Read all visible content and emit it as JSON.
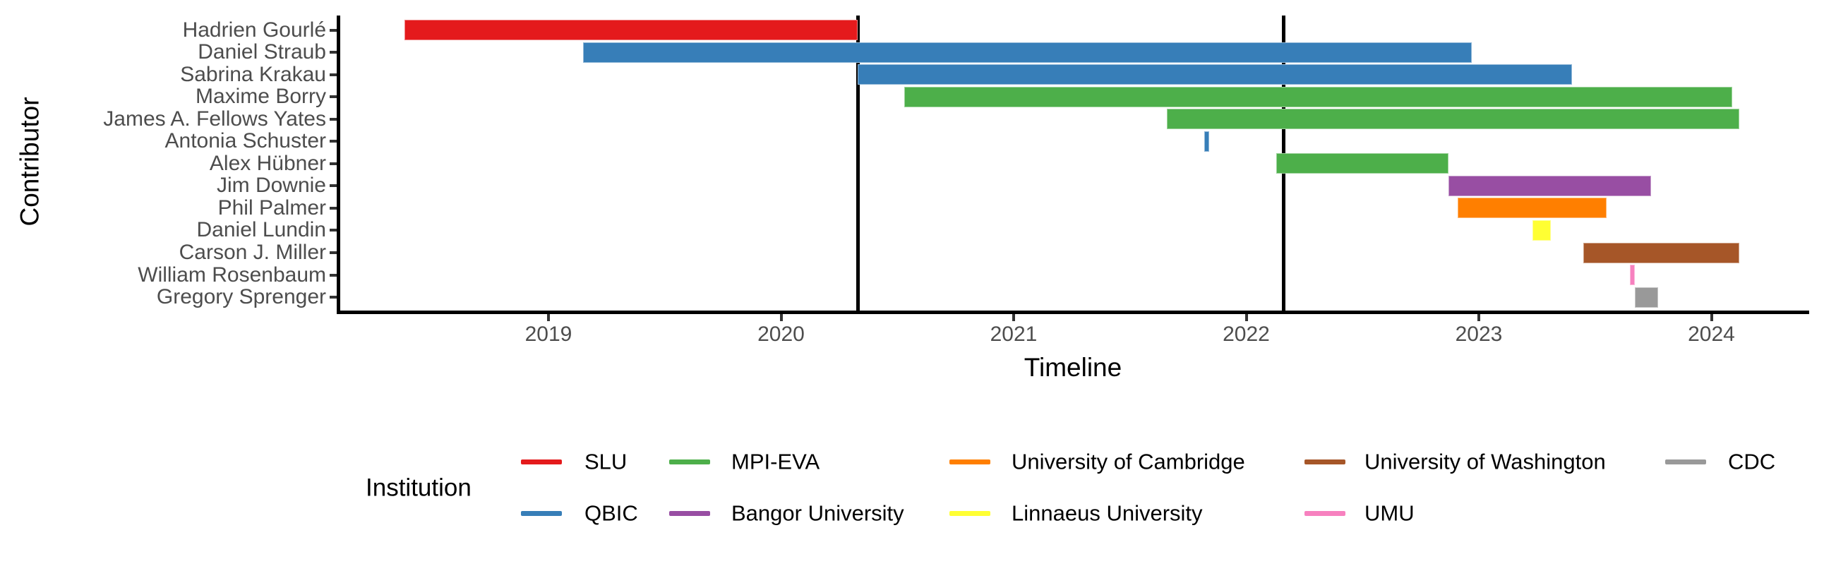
{
  "chart_data": {
    "type": "bar",
    "subtype": "horizontal-gantt-timeline",
    "title": "",
    "xlabel": "Timeline",
    "ylabel": "Contributor",
    "x_ticks": [
      2019,
      2020,
      2021,
      2022,
      2023,
      2024
    ],
    "xlim": [
      2018.1,
      2024.42
    ],
    "grid": false,
    "time_unit": "decimal_year",
    "event_lines_x": [
      2020.33,
      2022.16
    ],
    "categories": [
      "Hadrien Gourlé",
      "Daniel Straub",
      "Sabrina Krakau",
      "Maxime Borry",
      "James A. Fellows Yates",
      "Antonia Schuster",
      "Alex Hübner",
      "Jim Downie",
      "Phil Palmer",
      "Daniel Lundin",
      "Carson J. Miller",
      "William Rosenbaum",
      "Gregory Sprenger"
    ],
    "bars": [
      {
        "contributor": "Hadrien Gourlé",
        "institution": "SLU",
        "start": 2018.38,
        "end": 2020.33
      },
      {
        "contributor": "Daniel Straub",
        "institution": "QBIC",
        "start": 2019.15,
        "end": 2022.97
      },
      {
        "contributor": "Sabrina Krakau",
        "institution": "QBIC",
        "start": 2020.33,
        "end": 2023.4
      },
      {
        "contributor": "Maxime Borry",
        "institution": "MPI-EVA",
        "start": 2020.53,
        "end": 2024.09
      },
      {
        "contributor": "James A. Fellows Yates",
        "institution": "MPI-EVA",
        "start": 2021.66,
        "end": 2024.12
      },
      {
        "contributor": "Antonia Schuster",
        "institution": "QBIC",
        "start": 2021.82,
        "end": 2021.84
      },
      {
        "contributor": "Alex Hübner",
        "institution": "MPI-EVA",
        "start": 2022.13,
        "end": 2022.87
      },
      {
        "contributor": "Jim Downie",
        "institution": "Bangor University",
        "start": 2022.87,
        "end": 2023.74
      },
      {
        "contributor": "Phil Palmer",
        "institution": "University of Cambridge",
        "start": 2022.91,
        "end": 2023.55
      },
      {
        "contributor": "Daniel Lundin",
        "institution": "Linnaeus University",
        "start": 2023.23,
        "end": 2023.31
      },
      {
        "contributor": "Carson J. Miller",
        "institution": "University of Washington",
        "start": 2023.45,
        "end": 2024.12
      },
      {
        "contributor": "William Rosenbaum",
        "institution": "UMU",
        "start": 2023.65,
        "end": 2023.67
      },
      {
        "contributor": "Gregory Sprenger",
        "institution": "CDC",
        "start": 2023.67,
        "end": 2023.77
      }
    ],
    "legend": {
      "title": "Institution",
      "position": "bottom",
      "entries": [
        {
          "label": "SLU",
          "color": "#E41A1C"
        },
        {
          "label": "QBIC",
          "color": "#377EB8"
        },
        {
          "label": "MPI-EVA",
          "color": "#4DAF4A"
        },
        {
          "label": "Bangor University",
          "color": "#984EA3"
        },
        {
          "label": "University of Cambridge",
          "color": "#FF7F00"
        },
        {
          "label": "Linnaeus University",
          "color": "#FFFF33"
        },
        {
          "label": "University of Washington",
          "color": "#A65628"
        },
        {
          "label": "UMU",
          "color": "#F781BF"
        },
        {
          "label": "CDC",
          "color": "#999999"
        }
      ],
      "columns": [
        [
          "SLU",
          "QBIC"
        ],
        [
          "MPI-EVA",
          "Bangor University"
        ],
        [
          "University of Cambridge",
          "Linnaeus University"
        ],
        [
          "University of Washington",
          "UMU"
        ],
        [
          "CDC"
        ]
      ]
    },
    "colors": {
      "axis_text": "#4D4D4D",
      "axis_line": "#000000",
      "background": "#FFFFFF"
    }
  }
}
